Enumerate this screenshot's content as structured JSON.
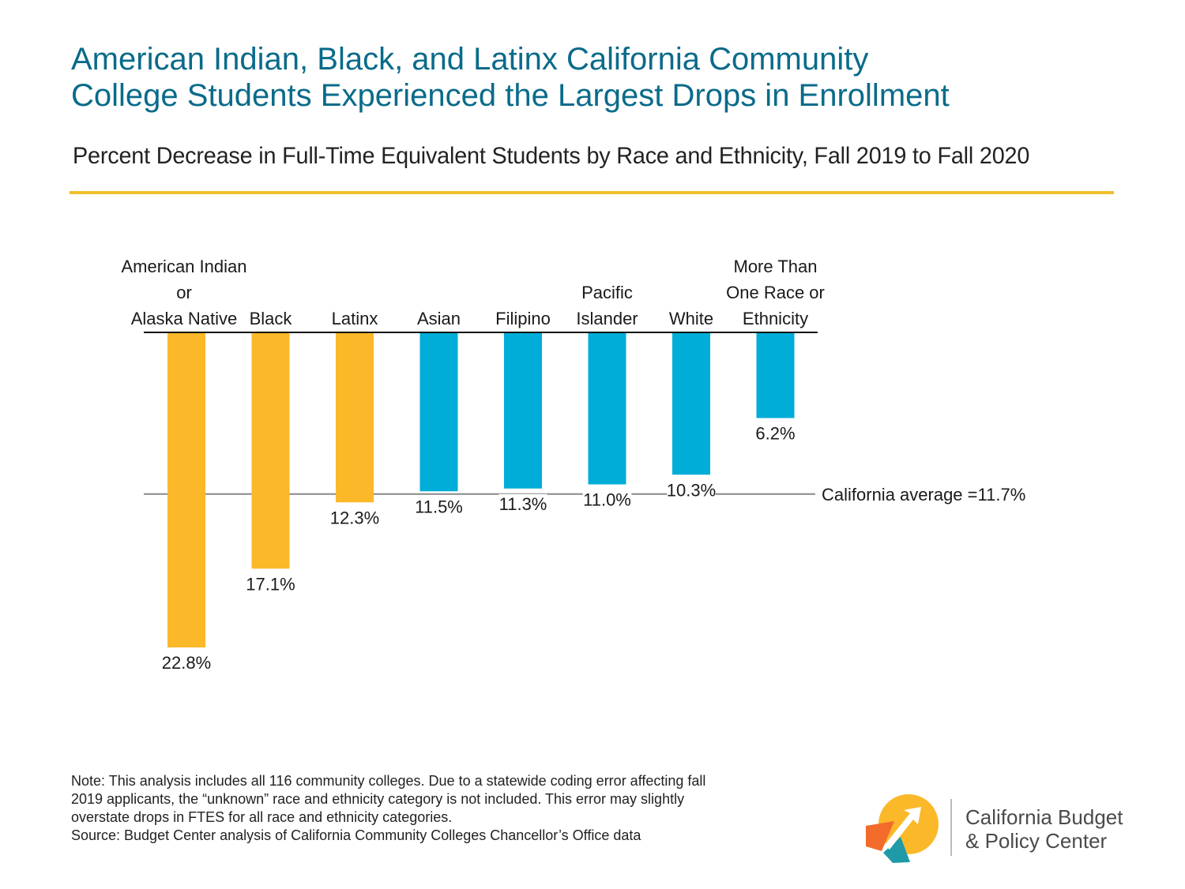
{
  "header": {
    "title_line1": "American Indian, Black, and Latinx California Community",
    "title_line2": "College Students Experienced the Largest Drops in Enrollment",
    "subtitle": "Percent Decrease in Full-Time Equivalent Students by Race and Ethnicity, Fall 2019 to Fall 2020"
  },
  "chart_data": {
    "type": "bar",
    "title": "American Indian, Black, and Latinx California Community College Students Experienced the Largest Drops in Enrollment",
    "subtitle": "Percent Decrease in Full-Time Equivalent Students by Race and Ethnicity, Fall 2019 to Fall 2020",
    "orientation": "downward",
    "categories": [
      [
        "American Indian",
        "or",
        "Alaska Native"
      ],
      [
        "Black"
      ],
      [
        "Latinx"
      ],
      [
        "Asian"
      ],
      [
        "Filipino"
      ],
      [
        "Pacific",
        "Islander"
      ],
      [
        "White"
      ],
      [
        "More Than",
        "One Race or",
        "Ethnicity"
      ]
    ],
    "values": [
      22.8,
      17.1,
      12.3,
      11.5,
      11.3,
      11.0,
      10.3,
      6.2
    ],
    "value_labels": [
      "22.8%",
      "17.1%",
      "12.3%",
      "11.5%",
      "11.3%",
      "11.0%",
      "10.3%",
      "6.2%"
    ],
    "highlight": [
      true,
      true,
      true,
      false,
      false,
      false,
      false,
      false
    ],
    "reference_line": {
      "value": 11.7,
      "label": "California average =11.7%"
    },
    "ylim": [
      0,
      22.8
    ],
    "grid": false,
    "xlabel": "",
    "ylabel": ""
  },
  "colors": {
    "title": "#0a6b8a",
    "highlight_bar": "#fbb829",
    "other_bar": "#00acd8",
    "rule": "#f2be2c",
    "reference_line": "#888888"
  },
  "footer": {
    "note_line1": "Note: This analysis includes all 116 community colleges. Due to a statewide coding error affecting fall",
    "note_line2": "2019 applicants, the “unknown” race and ethnicity category is not included. This error may slightly",
    "note_line3": "overstate drops in FTES for all race and ethnicity categories.",
    "source": "Source: Budget Center analysis of California Community Colleges Chancellor’s Office data"
  },
  "brand": {
    "line1": "California Budget",
    "line2": "& Policy Center",
    "logo_icon": "logo-icon"
  }
}
